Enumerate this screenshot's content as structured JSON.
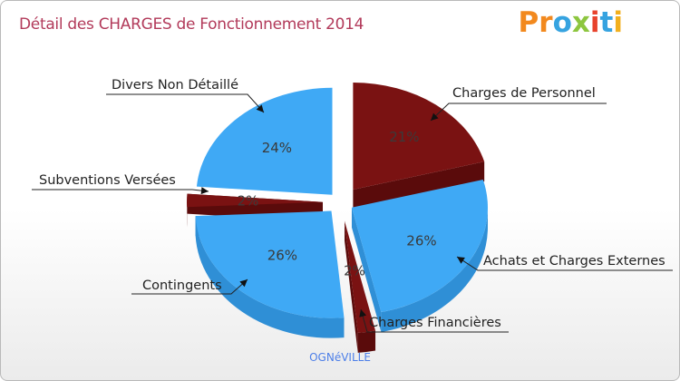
{
  "title": "Détail des CHARGES de Fonctionnement 2014",
  "logo": {
    "text": "Proxiti",
    "letters": [
      "P",
      "r",
      "o",
      "x",
      "i",
      "t",
      "i"
    ],
    "colors": [
      "#f2891e",
      "#f2891e",
      "#36a3e0",
      "#8dc63f",
      "#e8432d",
      "#36a3e0",
      "#f2b01e"
    ]
  },
  "footer": "OGNéVILLE",
  "colors": {
    "blue": "#3fa9f5",
    "blue_side": "#2f8fd6",
    "red": "#7a1212",
    "red_side": "#5a0b0b",
    "title": "#b23a5a"
  },
  "chart_data": {
    "type": "pie",
    "title": "Détail des CHARGES de Fonctionnement 2014",
    "slices": [
      {
        "label": "Charges de Personnel",
        "value": 21,
        "pct_label": "21%",
        "color": "red"
      },
      {
        "label": "Achats et Charges Externes",
        "value": 26,
        "pct_label": "26%",
        "color": "blue"
      },
      {
        "label": "Charges Financières",
        "value": 2,
        "pct_label": "2%",
        "color": "red"
      },
      {
        "label": "Contingents",
        "value": 26,
        "pct_label": "26%",
        "color": "blue"
      },
      {
        "label": "Subventions Versées",
        "value": 2,
        "pct_label": "2%",
        "color": "red"
      },
      {
        "label": "Divers Non Détaillé",
        "value": 24,
        "pct_label": "24%",
        "color": "blue"
      }
    ],
    "legend": "none"
  }
}
